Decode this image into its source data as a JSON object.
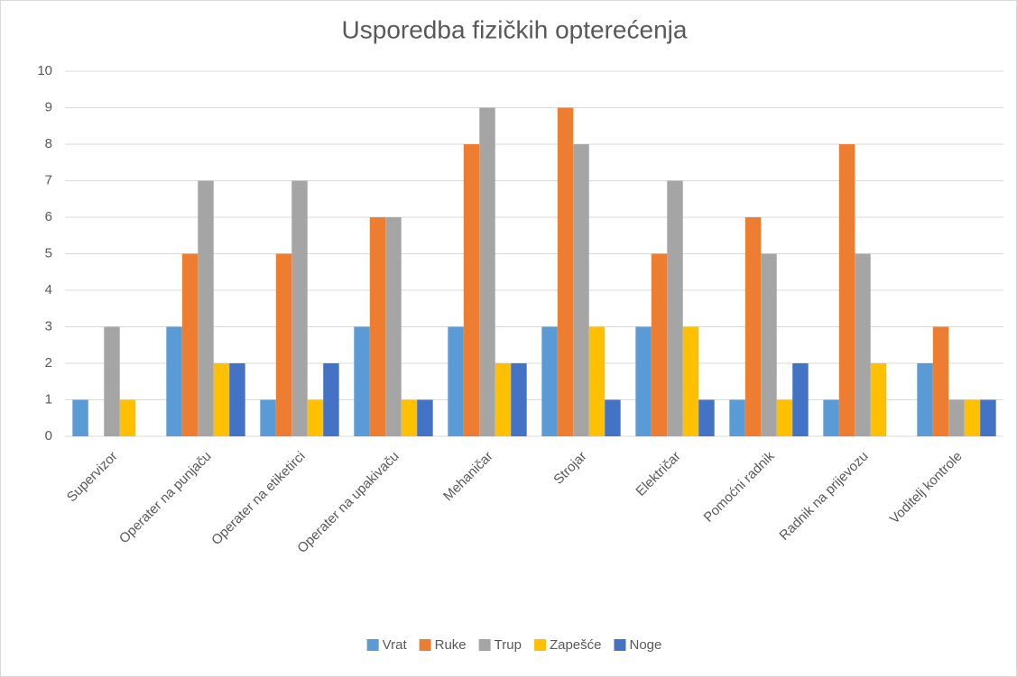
{
  "chart_data": {
    "type": "bar",
    "title": "Usporedba fizičkih opterećenja",
    "categories": [
      "Supervizor",
      "Operater na punjaču",
      "Operater na etiketirci",
      "Operater na upakivaču",
      "Mehaničar",
      "Strojar",
      "Električar",
      "Pomoćni radnik",
      "Radnik na prijevozu",
      "Voditelj kontrole"
    ],
    "series": [
      {
        "name": "Vrat",
        "color": "#5b9bd5",
        "values": [
          1,
          3,
          1,
          3,
          3,
          3,
          3,
          1,
          1,
          2
        ]
      },
      {
        "name": "Ruke",
        "color": "#ed7d31",
        "values": [
          0,
          5,
          5,
          6,
          8,
          9,
          5,
          6,
          8,
          3
        ]
      },
      {
        "name": "Trup",
        "color": "#a5a5a5",
        "values": [
          3,
          7,
          7,
          6,
          9,
          8,
          7,
          5,
          5,
          1
        ]
      },
      {
        "name": "Zapešće",
        "color": "#ffc000",
        "values": [
          1,
          2,
          1,
          1,
          2,
          3,
          3,
          1,
          2,
          1
        ]
      },
      {
        "name": "Noge",
        "color": "#4472c4",
        "values": [
          0,
          2,
          2,
          1,
          2,
          1,
          1,
          2,
          0,
          1
        ]
      }
    ],
    "ylim": [
      0,
      10
    ],
    "yticks": [
      0,
      1,
      2,
      3,
      4,
      5,
      6,
      7,
      8,
      9,
      10
    ],
    "grid": true,
    "legend": "bottom"
  }
}
